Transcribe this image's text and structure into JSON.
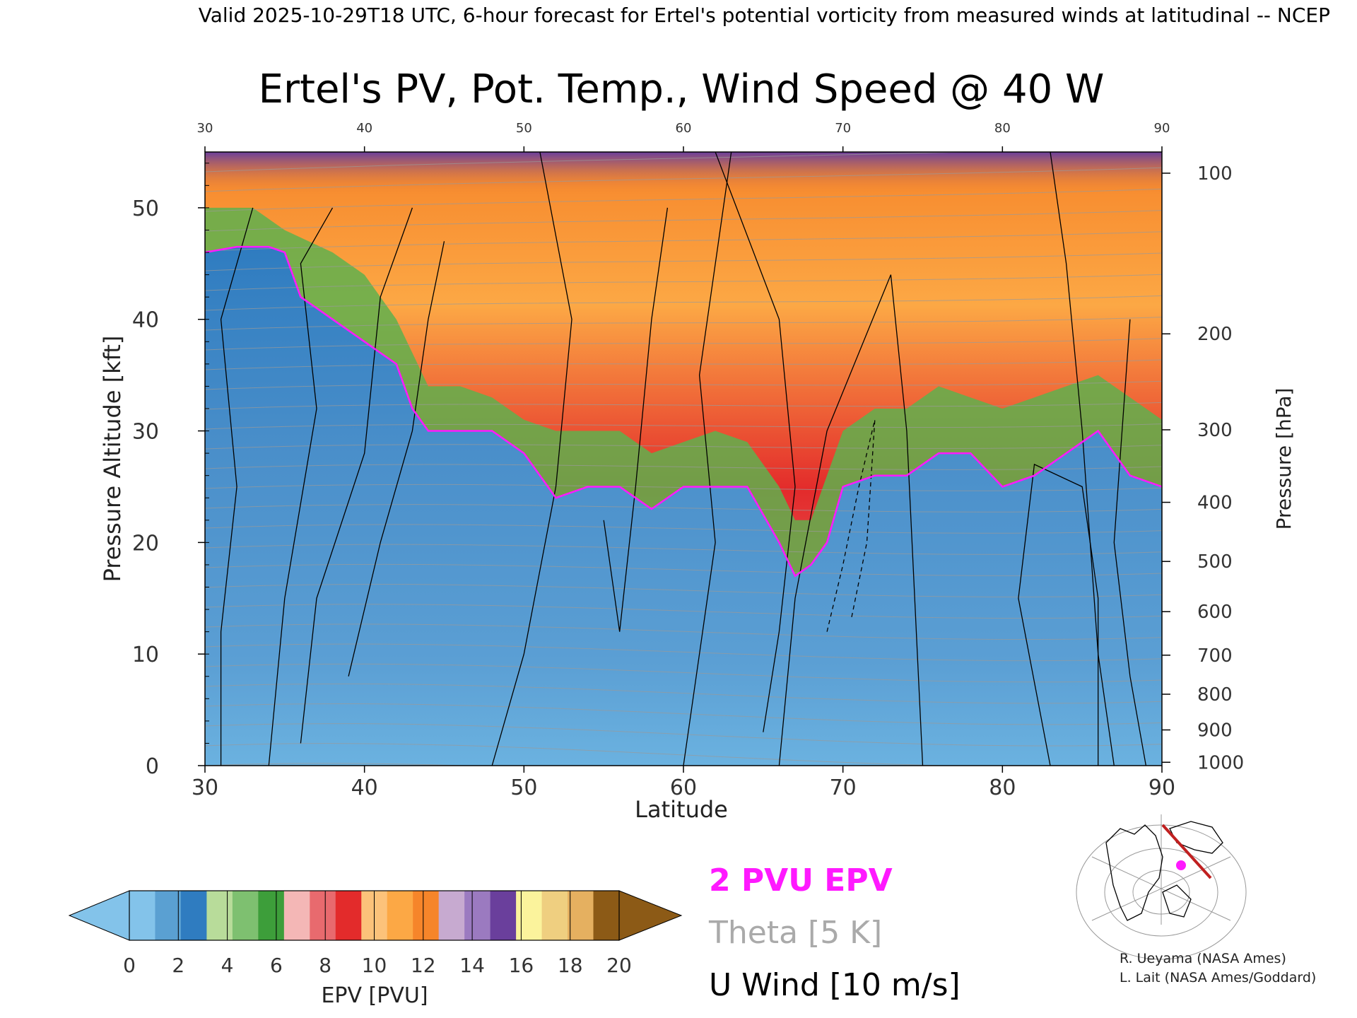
{
  "header": {
    "valid_line": "Valid 2025-10-29T18 UTC, 6-hour forecast for Ertel's potential vorticity from measured winds at latitudinal -- NCEP"
  },
  "chart_data": {
    "type": "heatmap",
    "title": "Ertel's PV, Pot. Temp., Wind Speed @ 40 W",
    "xlabel": "Latitude",
    "ylabel": "Pressure Altitude [kft]",
    "ylabel_right": "Pressure [hPa]",
    "xlim": [
      30,
      90
    ],
    "ylim": [
      0,
      55
    ],
    "x_ticks": [
      "30",
      "40",
      "50",
      "60",
      "70",
      "80",
      "90"
    ],
    "x_ticks_top": [
      "30",
      "40",
      "50",
      "60",
      "70",
      "80",
      "90"
    ],
    "y_ticks": [
      "0",
      "10",
      "20",
      "30",
      "40",
      "50"
    ],
    "pressure_ticks": [
      {
        "label": "100",
        "kft": 53.1
      },
      {
        "label": "200",
        "kft": 38.7
      },
      {
        "label": "300",
        "kft": 30.1
      },
      {
        "label": "400",
        "kft": 23.6
      },
      {
        "label": "500",
        "kft": 18.3
      },
      {
        "label": "600",
        "kft": 13.8
      },
      {
        "label": "700",
        "kft": 9.9
      },
      {
        "label": "800",
        "kft": 6.4
      },
      {
        "label": "900",
        "kft": 3.2
      },
      {
        "label": "1000",
        "kft": 0.3
      }
    ],
    "pv2_boundary_kft": [
      [
        30,
        46
      ],
      [
        32,
        46.5
      ],
      [
        34,
        46.5
      ],
      [
        35,
        46
      ],
      [
        36,
        42
      ],
      [
        37,
        41
      ],
      [
        38,
        40
      ],
      [
        39,
        39
      ],
      [
        40,
        38
      ],
      [
        41,
        37
      ],
      [
        42,
        36
      ],
      [
        43,
        32
      ],
      [
        44,
        30
      ],
      [
        46,
        30
      ],
      [
        48,
        30
      ],
      [
        50,
        28
      ],
      [
        52,
        24
      ],
      [
        54,
        25
      ],
      [
        56,
        25
      ],
      [
        58,
        23
      ],
      [
        60,
        25
      ],
      [
        62,
        25
      ],
      [
        64,
        25
      ],
      [
        66,
        20
      ],
      [
        67,
        17
      ],
      [
        68,
        18
      ],
      [
        69,
        20
      ],
      [
        70,
        25
      ],
      [
        72,
        26
      ],
      [
        74,
        26
      ],
      [
        76,
        28
      ],
      [
        78,
        28
      ],
      [
        80,
        25
      ],
      [
        82,
        26
      ],
      [
        84,
        28
      ],
      [
        86,
        30
      ],
      [
        88,
        26
      ],
      [
        90,
        25
      ]
    ],
    "tropopause_kft": [
      [
        30,
        50
      ],
      [
        33,
        50
      ],
      [
        35,
        48
      ],
      [
        38,
        46
      ],
      [
        40,
        44
      ],
      [
        42,
        40
      ],
      [
        44,
        34
      ],
      [
        46,
        34
      ],
      [
        48,
        33
      ],
      [
        50,
        31
      ],
      [
        52,
        30
      ],
      [
        54,
        30
      ],
      [
        56,
        30
      ],
      [
        58,
        28
      ],
      [
        60,
        29
      ],
      [
        62,
        30
      ],
      [
        64,
        29
      ],
      [
        66,
        25
      ],
      [
        67,
        22
      ],
      [
        68,
        22
      ],
      [
        70,
        30
      ],
      [
        72,
        32
      ],
      [
        74,
        32
      ],
      [
        76,
        34
      ],
      [
        78,
        33
      ],
      [
        80,
        32
      ],
      [
        82,
        33
      ],
      [
        84,
        34
      ],
      [
        86,
        35
      ],
      [
        88,
        33
      ],
      [
        90,
        31
      ]
    ],
    "colorbar": {
      "label": "EPV [PVU]",
      "ticks": [
        "0",
        "2",
        "4",
        "6",
        "8",
        "10",
        "12",
        "14",
        "16",
        "18",
        "20"
      ],
      "colors": [
        "#83c3ea",
        "#5aa0d2",
        "#2f7cc0",
        "#b8dc9a",
        "#7ec070",
        "#3d9e3a",
        "#f4b7b6",
        "#e86a6e",
        "#e32b2b",
        "#fcc27a",
        "#fca845",
        "#f6852a",
        "#c7aad0",
        "#9b7ac0",
        "#6a3f9c",
        "#fbf39c",
        "#efcf80",
        "#e5b060",
        "#8c5a16"
      ]
    },
    "legend": [
      {
        "label": "2 PVU EPV",
        "color": "#ff19ff"
      },
      {
        "label": "Theta [5 K]",
        "color": "#aaaaaa"
      },
      {
        "label": "U Wind [10 m/s]",
        "color": "#000000"
      }
    ]
  },
  "credits": [
    "R. Ueyama (NASA Ames)",
    "L. Lait (NASA Ames/Goddard)"
  ]
}
